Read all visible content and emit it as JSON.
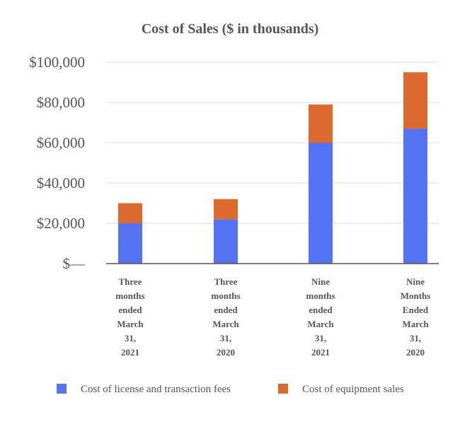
{
  "chart_data": {
    "type": "bar",
    "stacked": true,
    "title": "Cost of Sales ($ in thousands)",
    "xlabel": "",
    "ylabel": "",
    "categories": [
      [
        "Three",
        "months",
        "ended",
        "March",
        "31,",
        "2021"
      ],
      [
        "Three",
        "months",
        "ended",
        "March",
        "31,",
        "2020"
      ],
      [
        "Nine",
        "months",
        "ended",
        "March",
        "31,",
        "2021"
      ],
      [
        "Nine",
        "Months",
        "Ended",
        "March",
        "31,",
        "2020"
      ]
    ],
    "series": [
      {
        "name": "Cost of license and transaction fees",
        "color": "#5473f2",
        "values": [
          20000,
          22000,
          60000,
          67000
        ]
      },
      {
        "name": "Cost of equipment sales",
        "color": "#db6a2c",
        "values": [
          10000,
          10000,
          19000,
          28000
        ]
      }
    ],
    "ylim": [
      0,
      100000
    ],
    "yticks": [
      0,
      20000,
      40000,
      60000,
      80000,
      100000
    ],
    "ytick_labels": [
      "$—",
      "$20,000",
      "$40,000",
      "$60,000",
      "$80,000",
      "$100,000"
    ],
    "grid": true,
    "legend_position": "bottom"
  }
}
